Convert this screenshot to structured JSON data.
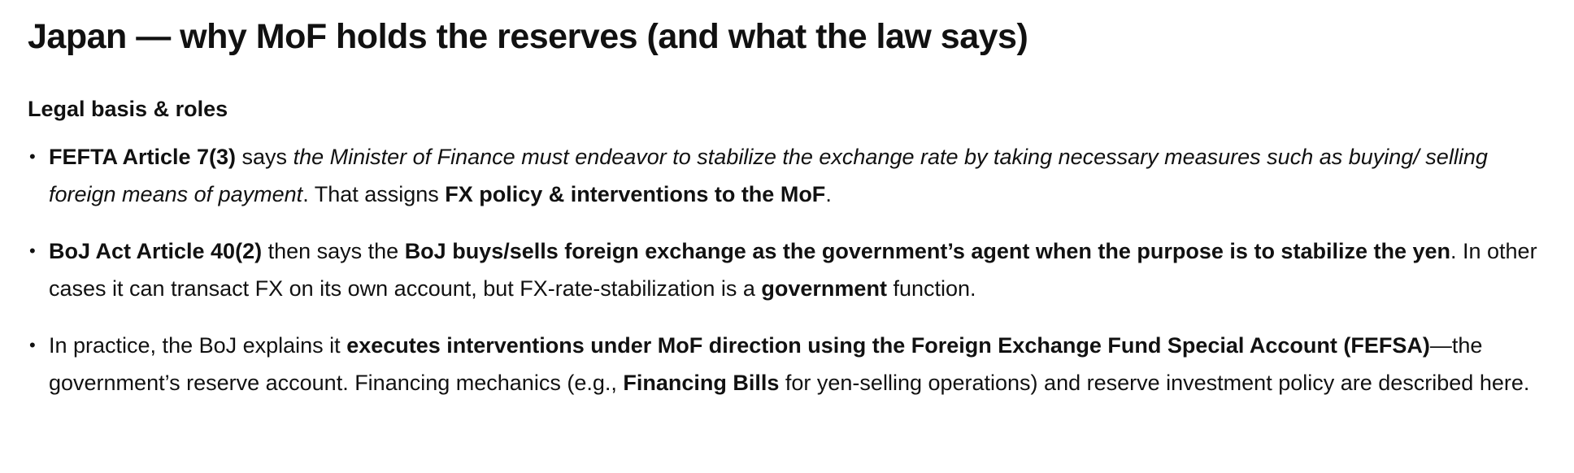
{
  "title": "Japan — why MoF holds the reserves (and what the law says)",
  "section": {
    "heading": "Legal basis & roles"
  },
  "bullets": [
    {
      "b1": "FEFTA Article 7(3)",
      "t1": " says ",
      "i1": "the Minister of Finance must endeavor to stabilize the exchange rate by taking necessary measures such as buying/ selling foreign means of payment",
      "t2": ". That assigns ",
      "b2": "FX policy & interventions to the MoF",
      "t3": "."
    },
    {
      "b1": "BoJ Act Article 40(2)",
      "t1": " then says the ",
      "b2": "BoJ buys/sells foreign exchange as the government’s agent when the purpose is to stabilize the yen",
      "t2": ". In other cases it can transact FX on its own account, but FX-rate-stabilization is a ",
      "b3": "government",
      "t3": " function."
    },
    {
      "t1": "In practice, the BoJ explains it ",
      "b1": "executes interventions under MoF direction using the Foreign Exchange Fund Special Account (FEFSA)",
      "t2": "—the government’s reserve account. Financing mechanics (e.g., ",
      "b2": "Financing Bills",
      "t3": " for yen-selling operations) and reserve investment policy are described here."
    }
  ],
  "bullet_glyph": "•"
}
